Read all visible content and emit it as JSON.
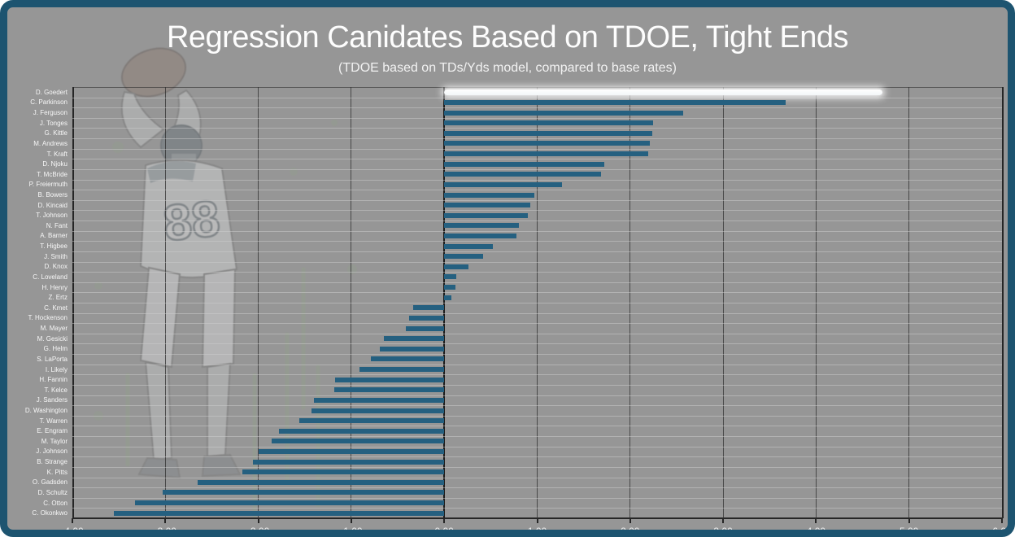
{
  "header": {
    "title": "Regression Canidates Based on TDOE, Tight Ends",
    "subtitle": "(TDOE based on TDs/Yds model, compared to base rates)"
  },
  "colors": {
    "frame": "#1d5470",
    "background": "#969696",
    "bar": "#256080",
    "highlight_bar": "#ffffff",
    "grid_line": "#2d2d2d",
    "zero_line": "#1c1c1c",
    "row_line": "#cdcdcd",
    "category_label": "#f7f7f7",
    "tick_label": "#eeeeee"
  },
  "watermark": {
    "description": "faded eagles tight-end player catching football, jersey 88",
    "jersey_number": "88"
  },
  "chart_data": {
    "type": "bar",
    "orientation": "horizontal",
    "title": "Regression Canidates Based on TDOE, Tight Ends",
    "subtitle": "(TDOE based on TDs/Yds model, compared to base rates)",
    "xlabel": "",
    "ylabel": "",
    "xlim": [
      -4,
      6
    ],
    "grid": true,
    "x_ticks": [
      "-4.00",
      "-3.00",
      "-2.00",
      "-1.00",
      "0.00",
      "1.00",
      "2.00",
      "3.00",
      "4.00",
      "5.00",
      "6.00"
    ],
    "highlight_index": 0,
    "highlighted_player": "D. Goedert",
    "categories": [
      "D. Goedert",
      "C. Parkinson",
      "J. Ferguson",
      "J. Tonges",
      "G. Kittle",
      "M. Andrews",
      "T. Kraft",
      "D. Njoku",
      "T. McBride",
      "P. Freiermuth",
      "B. Bowers",
      "D. Kincaid",
      "T. Johnson",
      "N. Fant",
      "A. Barner",
      "T. Higbee",
      "J. Smith",
      "D. Knox",
      "C. Loveland",
      "H. Henry",
      "Z. Ertz",
      "C. Kmet",
      "T. Hockenson",
      "M. Mayer",
      "M. Gesicki",
      "G. Helm",
      "S. LaPorta",
      "I. Likely",
      "H. Fannin",
      "T. Kelce",
      "J. Sanders",
      "D. Washington",
      "T. Warren",
      "E. Engram",
      "M. Taylor",
      "J. Johnson",
      "B. Strange",
      "K. Pitts",
      "O. Gadsden",
      "D. Schultz",
      "C. Otton",
      "C. Okonkwo"
    ],
    "values": [
      4.71,
      3.67,
      2.57,
      2.25,
      2.24,
      2.21,
      2.19,
      1.72,
      1.69,
      1.27,
      0.97,
      0.93,
      0.9,
      0.8,
      0.78,
      0.52,
      0.42,
      0.26,
      0.13,
      0.12,
      0.08,
      -0.33,
      -0.38,
      -0.41,
      -0.65,
      -0.69,
      -0.79,
      -0.91,
      -1.17,
      -1.18,
      -1.4,
      -1.43,
      -1.56,
      -1.78,
      -1.86,
      -2.0,
      -2.06,
      -2.17,
      -2.65,
      -3.03,
      -3.33,
      -3.55
    ]
  }
}
